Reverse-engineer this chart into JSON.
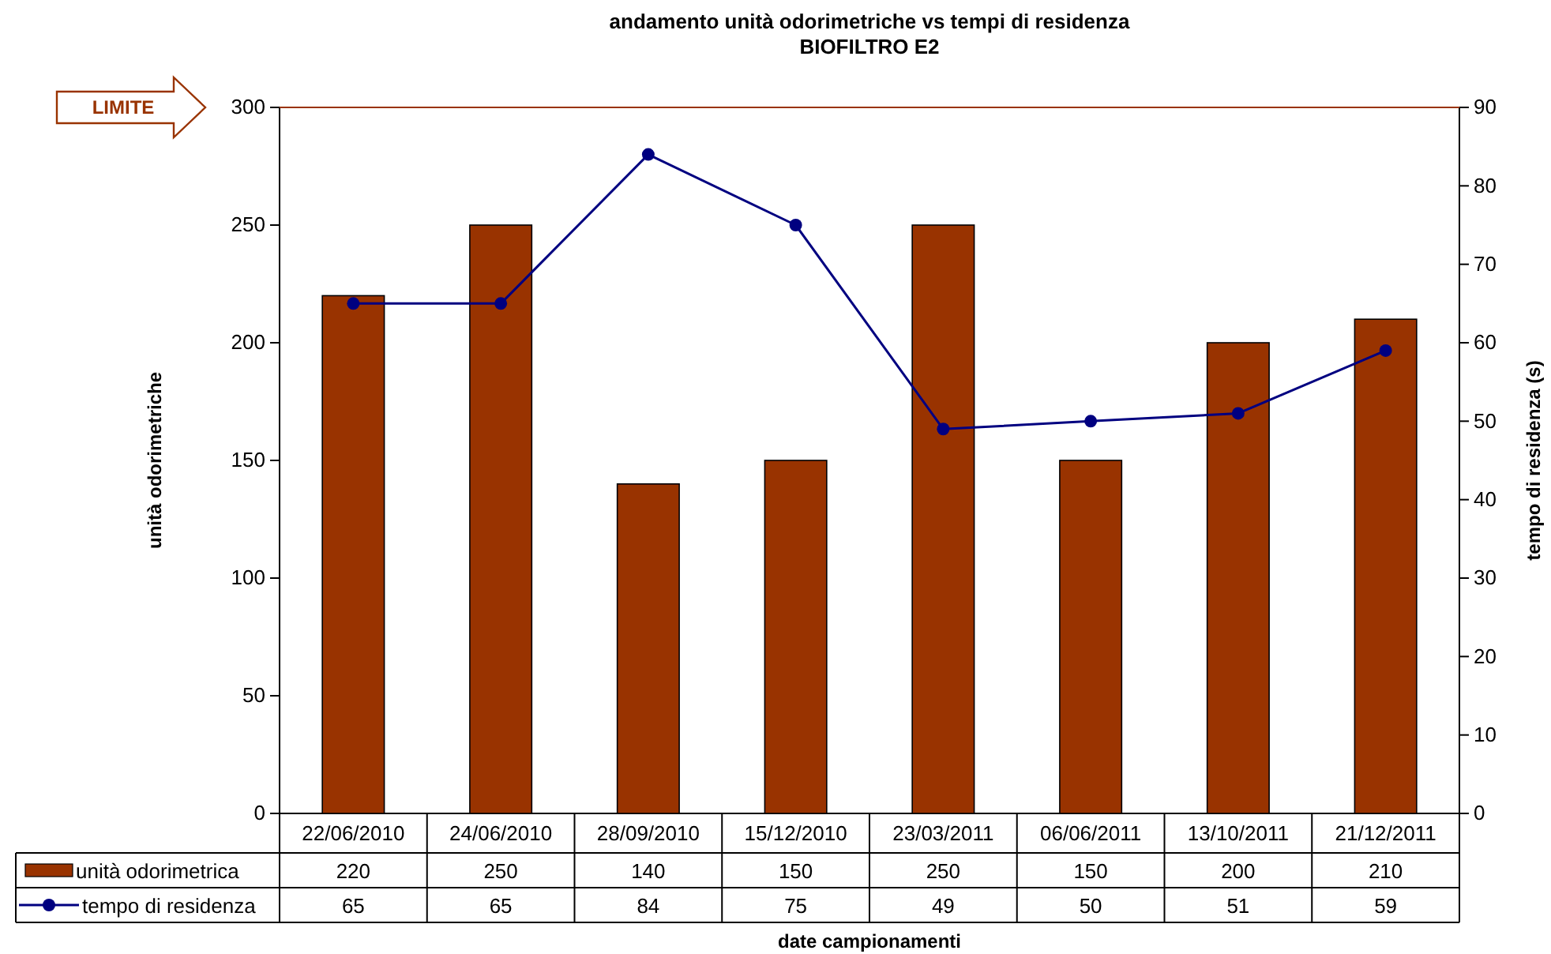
{
  "chart_data": {
    "type": "bar",
    "title": "andamento unità odorimetriche vs tempi di residenza",
    "subtitle": "BIOFILTRO E2",
    "xlabel": "date campionamenti",
    "ylabel": "unità odorimetriche",
    "y2label": "tempo di residenza (s)",
    "categories": [
      "22/06/2010",
      "24/06/2010",
      "28/09/2010",
      "15/12/2010",
      "23/03/2011",
      "06/06/2011",
      "13/10/2011",
      "21/12/2011"
    ],
    "series": [
      {
        "name": "unità odorimetrica",
        "color": "#993300",
        "values": [
          220,
          250,
          140,
          150,
          250,
          150,
          200,
          210
        ]
      },
      {
        "name": "tempo di residenza",
        "type": "line",
        "axis": "y2",
        "color": "#000080",
        "values": [
          65,
          65,
          84,
          75,
          49,
          50,
          51,
          59
        ]
      }
    ],
    "ylim": [
      0,
      300
    ],
    "yticks": [
      0,
      50,
      100,
      150,
      200,
      250,
      300
    ],
    "y2lim": [
      0,
      90
    ],
    "y2ticks": [
      0,
      10,
      20,
      30,
      40,
      50,
      60,
      70,
      80,
      90
    ],
    "ref_lines": [
      {
        "axis": "y",
        "value": 300,
        "label": "LIMITE",
        "color": "#993300"
      }
    ],
    "data_labels": true,
    "legend": "bottom",
    "grid": false,
    "marker": "circle",
    "line_style": "solid"
  }
}
